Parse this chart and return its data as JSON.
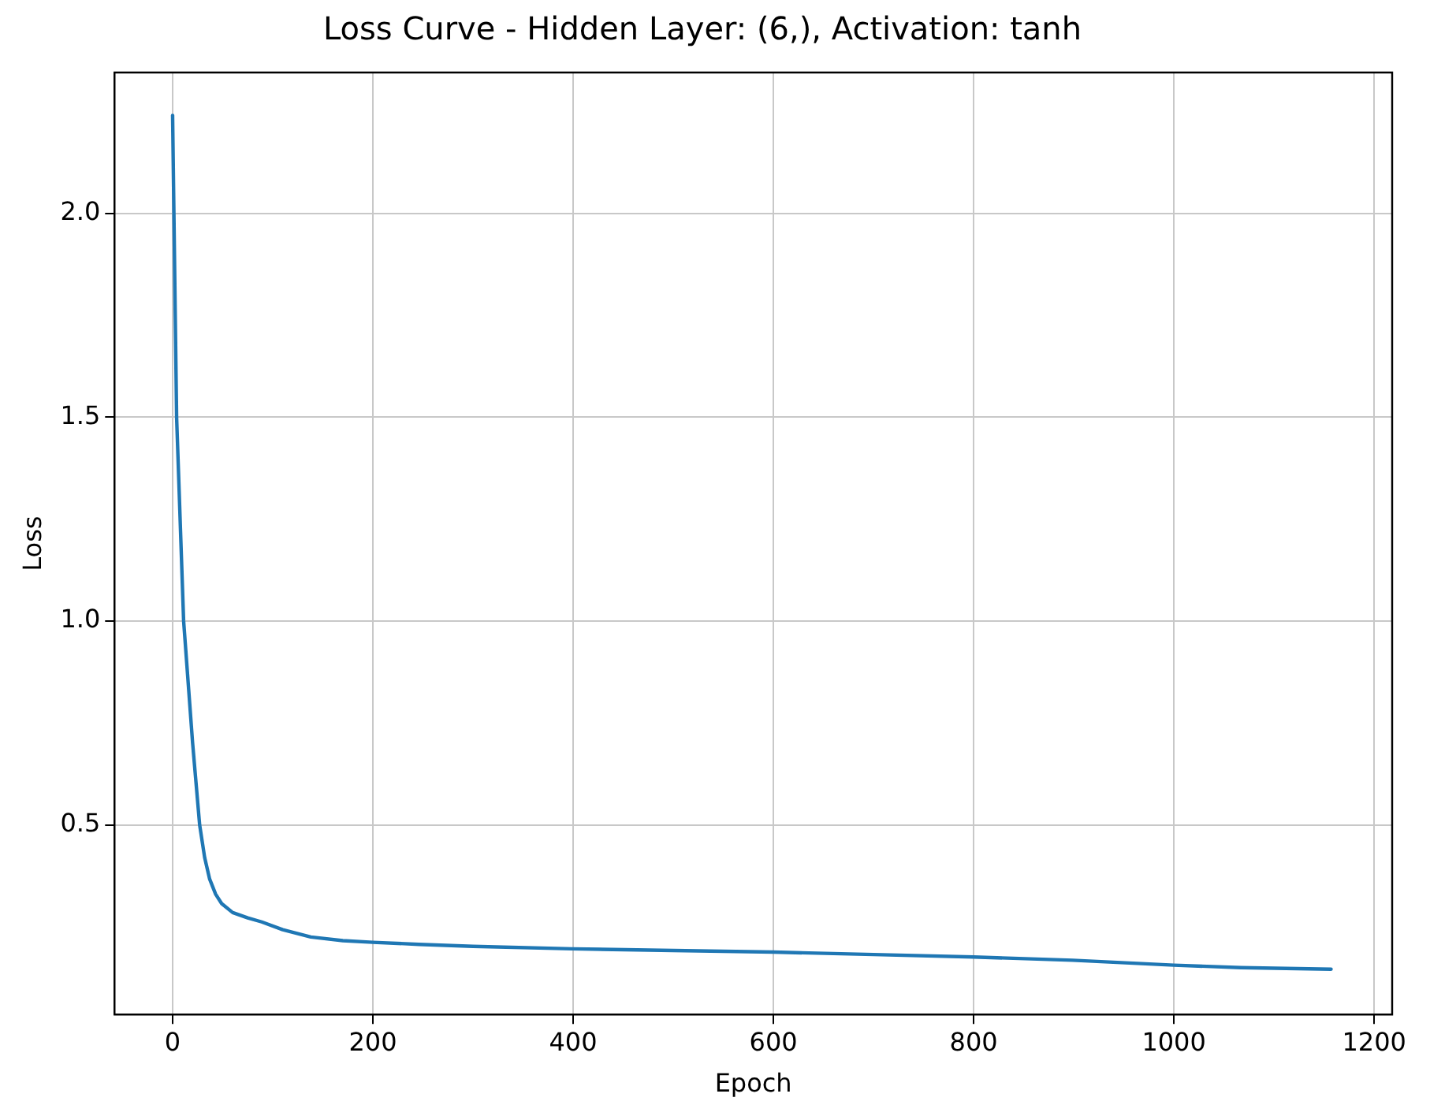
{
  "chart_data": {
    "type": "line",
    "title": "Loss Curve - Hidden Layer: (6,), Activation: tanh",
    "xlabel": "Epoch",
    "ylabel": "Loss",
    "x": [
      0,
      4,
      11,
      20,
      27,
      32,
      37,
      43,
      49,
      60,
      75,
      89,
      110,
      138,
      170,
      200,
      246,
      300,
      399,
      500,
      600,
      700,
      800,
      899,
      1000,
      1067,
      1157
    ],
    "series": [
      {
        "color": "#1f77b4",
        "values": [
          2.24,
          1.5,
          1.0,
          0.7,
          0.5,
          0.42,
          0.367,
          0.33,
          0.307,
          0.285,
          0.272,
          0.262,
          0.243,
          0.225,
          0.216,
          0.212,
          0.207,
          0.202,
          0.196,
          0.192,
          0.188,
          0.182,
          0.176,
          0.168,
          0.156,
          0.15,
          0.146
        ]
      }
    ],
    "xlim": [
      -58,
      1218
    ],
    "ylim": [
      0.035,
      2.345
    ],
    "xticks": [
      0,
      200,
      400,
      600,
      800,
      1000,
      1200
    ],
    "yticks": [
      0.5,
      {
        "value": 1,
        "label": "1.0"
      },
      1.5,
      {
        "value": 2,
        "label": "2.0"
      }
    ],
    "grid": true,
    "legend": false,
    "marker": "none",
    "line_style": "solid"
  }
}
